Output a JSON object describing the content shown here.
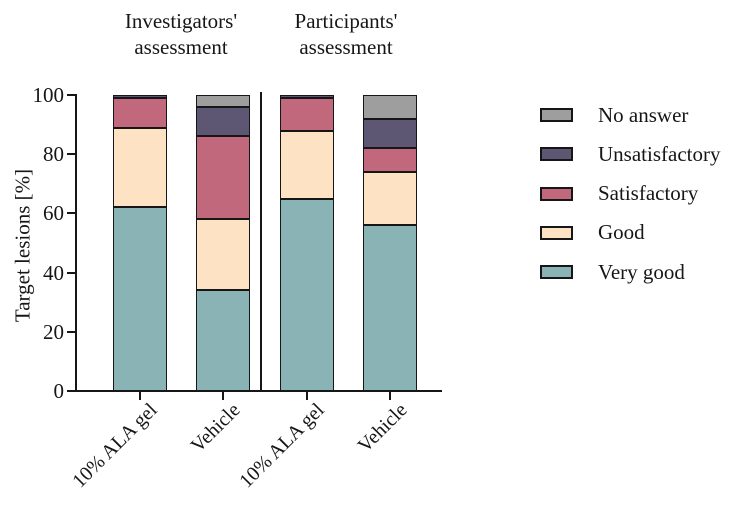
{
  "figure": {
    "background": "#ffffff",
    "y_axis_title": "Target lesions [%]",
    "group_headers": [
      {
        "text": "Investigators'\nassessment"
      },
      {
        "text": "Participants'\nassessment"
      }
    ]
  },
  "chart_data": {
    "type": "bar",
    "stacked": true,
    "title": "",
    "xlabel": "",
    "ylabel": "Target lesions [%]",
    "ylim": [
      0,
      100
    ],
    "yticks": [
      0,
      20,
      40,
      60,
      80,
      100
    ],
    "grid": false,
    "groups": [
      "Investigators' assessment",
      "Participants' assessment"
    ],
    "categories": [
      "10% ALA gel",
      "Vehicle",
      "10% ALA gel",
      "Vehicle"
    ],
    "series": [
      {
        "name": "Very good",
        "color": "#8ab3b5",
        "values": [
          62,
          34,
          65,
          56
        ]
      },
      {
        "name": "Good",
        "color": "#fde3c3",
        "values": [
          27,
          24,
          23,
          18
        ]
      },
      {
        "name": "Satisfactory",
        "color": "#c2687d",
        "values": [
          10,
          28,
          11,
          8
        ]
      },
      {
        "name": "Unsatisfactory",
        "color": "#5e5773",
        "values": [
          1,
          10,
          1,
          10
        ]
      },
      {
        "name": "No answer",
        "color": "#9e9e9f",
        "values": [
          0,
          4,
          0,
          8
        ]
      }
    ],
    "legend": {
      "position": "right",
      "order_top_to_bottom": [
        "No answer",
        "Unsatisfactory",
        "Satisfactory",
        "Good",
        "Very good"
      ]
    },
    "outline_color": "#161616"
  }
}
